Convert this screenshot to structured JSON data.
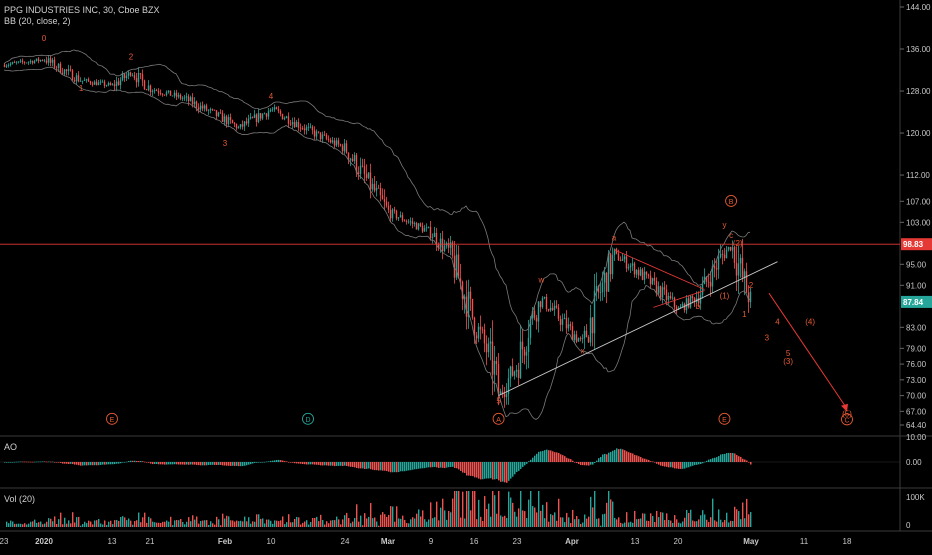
{
  "header": {
    "symbol_line": "PPG INDUSTRIES INC, 30, Cboe BZX",
    "indicator_line": "BB (20, close, 2)"
  },
  "panes": {
    "ao_label": "AO",
    "vol_label": "Vol (20)"
  },
  "price_axis": {
    "ticks": [
      "144.00",
      "136.00",
      "128.00",
      "120.00",
      "112.00",
      "107.00",
      "103.00",
      "98.83",
      "95.00",
      "91.00",
      "87.84",
      "83.00",
      "79.00",
      "76.00",
      "73.00",
      "70.00",
      "67.00",
      "64.40"
    ],
    "levels": [
      144.0,
      136.0,
      128.0,
      120.0,
      112.0,
      107.0,
      103.0,
      95.0,
      91.0,
      83.0,
      79.0,
      76.0,
      73.0,
      70.0,
      67.0,
      64.4
    ],
    "highlight_level": {
      "value": 98.83,
      "label": "98.83",
      "color": "#e53935"
    },
    "last_price": {
      "value": 87.84,
      "label": "87.84",
      "color": "#26a69a"
    }
  },
  "ao_axis": {
    "ticks": [
      "10.00",
      "0.00"
    ]
  },
  "vol_axis": {
    "ticks": [
      "100K",
      "0"
    ]
  },
  "time_axis": {
    "labels": [
      "23",
      "2020",
      "13",
      "21",
      "Feb",
      "10",
      "24",
      "Mar",
      "9",
      "16",
      "23",
      "Apr",
      "13",
      "20",
      "May",
      "11",
      "18"
    ]
  },
  "colors": {
    "up": "#26a69a",
    "down": "#ef5350",
    "band": "#7a7a7a",
    "trend": "#c8c8c8",
    "resistance": "#e53935",
    "wave_label": "#e65a32",
    "wave_label_teal": "#26a69a"
  },
  "chart_data": {
    "type": "candlestick",
    "title": "PPG INDUSTRIES INC, 30, Cboe BZX",
    "indicator": "BB (20, close, 2)",
    "ylim": [
      64.4,
      144.0
    ],
    "horizontal_line": 98.83,
    "last_price": 87.84,
    "price_path": [
      {
        "x": "2019-12-23",
        "y": 133.0
      },
      {
        "x": "2020-01-02",
        "y": 134.0
      },
      {
        "x": "2020-01-08",
        "y": 130.0
      },
      {
        "x": "2020-01-13",
        "y": 129.0
      },
      {
        "x": "2020-01-17",
        "y": 131.5
      },
      {
        "x": "2020-01-21",
        "y": 128.5
      },
      {
        "x": "2020-01-27",
        "y": 126.5
      },
      {
        "x": "2020-02-03",
        "y": 122.5
      },
      {
        "x": "2020-02-05",
        "y": 121.0
      },
      {
        "x": "2020-02-10",
        "y": 124.5
      },
      {
        "x": "2020-02-18",
        "y": 120.0
      },
      {
        "x": "2020-02-24",
        "y": 117.0
      },
      {
        "x": "2020-03-02",
        "y": 105.0
      },
      {
        "x": "2020-03-09",
        "y": 101.0
      },
      {
        "x": "2020-03-12",
        "y": 97.0
      },
      {
        "x": "2020-03-16",
        "y": 84.0
      },
      {
        "x": "2020-03-19",
        "y": 76.0
      },
      {
        "x": "2020-03-20",
        "y": 70.0
      },
      {
        "x": "2020-03-23",
        "y": 76.0
      },
      {
        "x": "2020-03-25",
        "y": 84.0
      },
      {
        "x": "2020-03-27",
        "y": 88.5
      },
      {
        "x": "2020-04-01",
        "y": 82.0
      },
      {
        "x": "2020-04-03",
        "y": 80.0
      },
      {
        "x": "2020-04-06",
        "y": 89.0
      },
      {
        "x": "2020-04-09",
        "y": 97.0
      },
      {
        "x": "2020-04-13",
        "y": 94.0
      },
      {
        "x": "2020-04-16",
        "y": 91.0
      },
      {
        "x": "2020-04-20",
        "y": 86.5
      },
      {
        "x": "2020-04-23",
        "y": 89.0
      },
      {
        "x": "2020-04-27",
        "y": 97.5
      },
      {
        "x": "2020-04-28",
        "y": 98.5
      },
      {
        "x": "2020-04-29",
        "y": 95.0
      },
      {
        "x": "2020-04-30",
        "y": 91.0
      },
      {
        "x": "2020-05-01",
        "y": 87.84
      }
    ],
    "projection": [
      {
        "x": "2020-05-01",
        "y": 89.5
      },
      {
        "x": "2020-05-18",
        "y": 67.5
      }
    ],
    "wave_labels": [
      {
        "text": "0",
        "x": "2020-01-02",
        "y": 137.5
      },
      {
        "text": "1",
        "x": "2020-01-08",
        "y": 128.0
      },
      {
        "text": "2",
        "x": "2020-01-17",
        "y": 134.0
      },
      {
        "text": "3",
        "x": "2020-02-03",
        "y": 117.5
      },
      {
        "text": "4",
        "x": "2020-02-10",
        "y": 126.5
      },
      {
        "text": "5",
        "x": "2020-03-20",
        "y": 68.5
      },
      {
        "text": "w",
        "x": "2020-03-27",
        "y": 91.5
      },
      {
        "text": "x",
        "x": "2020-04-03",
        "y": 78.0
      },
      {
        "text": "a",
        "x": "2020-04-09",
        "y": 99.5
      },
      {
        "text": "b",
        "x": "2020-04-23",
        "y": 86.5
      },
      {
        "text": "c",
        "x": "2020-04-28",
        "y": 100.0
      },
      {
        "text": "y",
        "x": "2020-04-27",
        "y": 102.0
      },
      {
        "text": "(2)",
        "x": "2020-04-29",
        "y": 98.5
      },
      {
        "text": "(1)",
        "x": "2020-04-27",
        "y": 88.5
      },
      {
        "text": "1",
        "x": "2020-04-30",
        "y": 85.0
      },
      {
        "text": "2",
        "x": "2020-05-01",
        "y": 90.5
      },
      {
        "text": "3",
        "x": "2020-05-04",
        "y": 80.5
      },
      {
        "text": "4",
        "x": "2020-05-06",
        "y": 83.5
      },
      {
        "text": "5",
        "x": "2020-05-08",
        "y": 77.5
      },
      {
        "text": "(3)",
        "x": "2020-05-08",
        "y": 76.0
      },
      {
        "text": "(4)",
        "x": "2020-05-12",
        "y": 83.5
      },
      {
        "text": "(5)",
        "x": "2020-05-18",
        "y": 66.0
      }
    ],
    "circled_labels": [
      {
        "text": "E",
        "x": "2020-01-13",
        "y": 65.0,
        "color": "#e65a32"
      },
      {
        "text": "D",
        "x": "2020-02-17",
        "y": 65.0,
        "color": "#26a69a"
      },
      {
        "text": "A",
        "x": "2020-03-20",
        "y": 65.0,
        "color": "#e65a32"
      },
      {
        "text": "E",
        "x": "2020-04-27",
        "y": 65.0,
        "color": "#e65a32"
      },
      {
        "text": "B",
        "x": "2020-04-28",
        "y": 106.5,
        "color": "#e65a32"
      },
      {
        "text": "C",
        "x": "2020-05-18",
        "y": 64.9,
        "color": "#e65a32"
      }
    ]
  }
}
